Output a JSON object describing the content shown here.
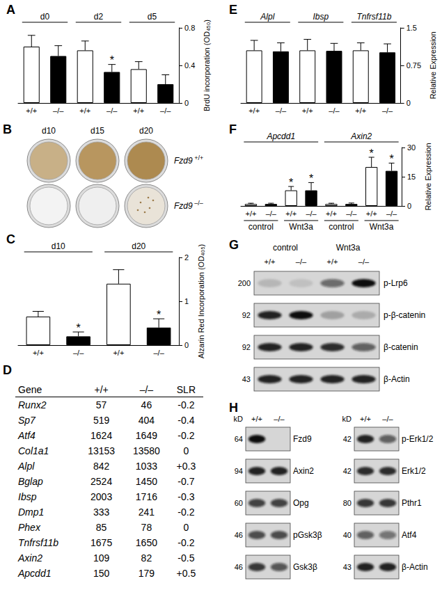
{
  "chart_data": [
    {
      "type": "bar",
      "title": "A",
      "groups": [
        "d0",
        "d2",
        "d5"
      ],
      "categories": [
        "+/+",
        "–/–",
        "+/+",
        "–/–",
        "+/+",
        "–/–"
      ],
      "values": [
        0.6,
        0.5,
        0.56,
        0.33,
        0.36,
        0.2
      ],
      "errors": [
        0.12,
        0.11,
        0.1,
        0.08,
        0.08,
        0.1
      ],
      "colors": [
        "#ffffff",
        "#000000",
        "#ffffff",
        "#000000",
        "#ffffff",
        "#000000"
      ],
      "ylabel": "BrdU incorporation (OD₄₅₀)",
      "ylim": [
        0,
        0.8
      ],
      "yticks": [
        0,
        0.4,
        0.8
      ],
      "grid": false,
      "annotations": [
        {
          "index": 3,
          "text": "*"
        }
      ]
    },
    {
      "type": "bar",
      "title": "C",
      "groups": [
        "d10",
        "d20"
      ],
      "categories": [
        "+/+",
        "–/–",
        "+/+",
        "–/–"
      ],
      "values": [
        0.65,
        0.2,
        1.4,
        0.4
      ],
      "errors": [
        0.12,
        0.1,
        0.32,
        0.2
      ],
      "colors": [
        "#ffffff",
        "#000000",
        "#ffffff",
        "#000000"
      ],
      "ylabel": "Alzarin Red Incorporation (OD₄₀₅)",
      "ylim": [
        0,
        2
      ],
      "yticks": [
        0,
        1,
        2
      ],
      "grid": false,
      "annotations": [
        {
          "index": 1,
          "text": "*"
        },
        {
          "index": 3,
          "text": "*"
        }
      ]
    },
    {
      "type": "bar",
      "title": "E",
      "groups": [
        "Alpl",
        "Ibsp",
        "Tnfrsf11b"
      ],
      "categories": [
        "+/+",
        "–/–",
        "+/+",
        "–/–",
        "+/+",
        "–/–"
      ],
      "values": [
        1.05,
        1.03,
        1.05,
        1.04,
        1.05,
        1.01
      ],
      "errors": [
        0.2,
        0.17,
        0.22,
        0.15,
        0.15,
        0.17
      ],
      "colors": [
        "#ffffff",
        "#000000",
        "#ffffff",
        "#000000",
        "#ffffff",
        "#000000"
      ],
      "ylabel": "Relative Expression",
      "ylim": [
        0,
        1.5
      ],
      "yticks": [
        0,
        0.75,
        1.5
      ],
      "grid": false
    },
    {
      "type": "bar",
      "title": "F",
      "groups": [
        "Apcdd1",
        "Axin2"
      ],
      "subgroups": [
        "control",
        "Wnt3a",
        "control",
        "Wnt3a"
      ],
      "categories": [
        "+/+",
        "–/–",
        "+/+",
        "–/–",
        "+/+",
        "–/–",
        "+/+",
        "–/–"
      ],
      "values": [
        1,
        1,
        8,
        8,
        1,
        1,
        20,
        18
      ],
      "errors": [
        0.4,
        0.4,
        2,
        4,
        0.4,
        0.5,
        5,
        4
      ],
      "colors": [
        "#ffffff",
        "#000000",
        "#ffffff",
        "#000000",
        "#ffffff",
        "#000000",
        "#ffffff",
        "#000000"
      ],
      "ylabel": "Relative Expression",
      "ylim": [
        0,
        30
      ],
      "yticks": [
        0,
        15,
        30
      ],
      "grid": false,
      "annotations": [
        {
          "index": 2,
          "text": "*"
        },
        {
          "index": 3,
          "text": "*"
        },
        {
          "index": 6,
          "text": "*"
        },
        {
          "index": 7,
          "text": "*"
        }
      ]
    }
  ],
  "photo": {
    "panel": "B",
    "columns": [
      "d10",
      "d15",
      "d20"
    ],
    "rows": [
      {
        "label": "Fzd9",
        "superscript": "+/+"
      },
      {
        "label": "Fzd9",
        "superscript": "–/–"
      }
    ]
  },
  "table": {
    "panel": "D",
    "header": [
      "Gene",
      "+/+",
      "–/–",
      "SLR"
    ],
    "rows": [
      [
        "Runx2",
        "57",
        "46",
        "-0.2"
      ],
      [
        "Sp7",
        "519",
        "404",
        "-0.4"
      ],
      [
        "Atf4",
        "1624",
        "1649",
        "-0.2"
      ],
      [
        "Col1a1",
        "13153",
        "13580",
        "0"
      ],
      [
        "Alpl",
        "842",
        "1033",
        "+0.3"
      ],
      [
        "Bglap",
        "2524",
        "1450",
        "-0.7"
      ],
      [
        "Ibsp",
        "2003",
        "1716",
        "-0.3"
      ],
      [
        "Dmp1",
        "333",
        "241",
        "-0.2"
      ],
      [
        "Phex",
        "85",
        "78",
        "0"
      ],
      [
        "Tnfrsf11b",
        "1675",
        "1650",
        "-0.2"
      ],
      [
        "Axin2",
        "109",
        "82",
        "-0.5"
      ],
      [
        "Apcdd1",
        "150",
        "179",
        "+0.5"
      ]
    ]
  },
  "blots": [
    {
      "panel": "G",
      "conditions": [
        "control",
        "Wnt3a"
      ],
      "membranes": [
        {
          "genotypes": [
            "+/+",
            "–/–",
            "+/+",
            "–/–"
          ],
          "rows": [
            {
              "kd": 200,
              "label": "p-Lrp6",
              "bands": [
                0.15,
                0.1,
                0.55,
                1.0
              ]
            },
            {
              "kd": 92,
              "label": "p-β-catenin",
              "bands": [
                0.9,
                1.0,
                0.25,
                0.2
              ]
            },
            {
              "kd": 92,
              "label": "β-catenin",
              "bands": [
                0.9,
                0.9,
                0.85,
                0.6
              ]
            },
            {
              "kd": 43,
              "label": "β-Actin",
              "bands": [
                0.9,
                0.9,
                0.9,
                0.9
              ]
            }
          ]
        }
      ]
    },
    {
      "panel": "H",
      "membranes": [
        {
          "kd_header": "kD",
          "genotypes": [
            "+/+",
            "–/–"
          ],
          "rows": [
            {
              "kd": 64,
              "label": "Fzd9",
              "bands": [
                1.0,
                0.0
              ]
            },
            {
              "kd": 94,
              "label": "Axin2",
              "bands": [
                0.9,
                0.9
              ]
            },
            {
              "kd": 60,
              "label": "Opg",
              "bands": [
                0.75,
                0.75
              ]
            },
            {
              "kd": 46,
              "label": "pGsk3β",
              "bands": [
                0.7,
                0.7
              ]
            },
            {
              "kd": 46,
              "label": "Gsk3β",
              "bands": [
                0.8,
                0.65
              ]
            }
          ]
        },
        {
          "kd_header": "kD",
          "genotypes": [
            "+/+",
            "–/–"
          ],
          "rows": [
            {
              "kd": 42,
              "label": "p-Erk1/2",
              "bands": [
                0.9,
                0.6
              ]
            },
            {
              "kd": 42,
              "label": "Erk1/2",
              "bands": [
                0.85,
                0.85
              ]
            },
            {
              "kd": 80,
              "label": "Pthr1",
              "bands": [
                0.8,
                0.8
              ]
            },
            {
              "kd": 40,
              "label": "Atf4",
              "bands": [
                0.6,
                0.5
              ]
            },
            {
              "kd": 43,
              "label": "β-Actin",
              "bands": [
                0.9,
                0.9
              ]
            }
          ]
        }
      ]
    }
  ]
}
